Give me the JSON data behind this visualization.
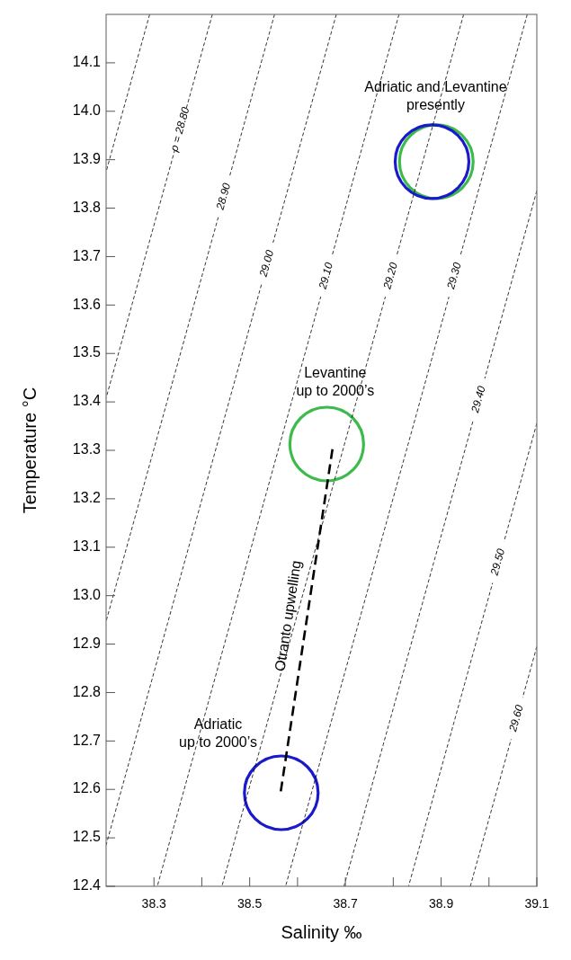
{
  "chart_data": {
    "type": "line",
    "xlabel": "Salinity ‰",
    "ylabel": "Temperature °C",
    "xlim": [
      38.2,
      39.1
    ],
    "ylim": [
      12.4,
      14.2
    ],
    "xticks": [
      38.3,
      {
        "value": 38.4,
        "label": null
      },
      38.5,
      {
        "value": 38.6,
        "label": null
      },
      38.7,
      {
        "value": 38.8,
        "label": null
      },
      38.9,
      {
        "value": 39.0,
        "label": null
      },
      39.1
    ],
    "yticks": [
      12.4,
      12.5,
      12.6,
      12.7,
      12.8,
      12.9,
      {
        "value": 13.0,
        "label": "13.0"
      },
      13.1,
      13.2,
      13.3,
      13.4,
      13.5,
      13.6,
      13.7,
      13.8,
      13.9,
      {
        "value": 14.0,
        "label": "14.0"
      },
      14.1
    ],
    "grid": false,
    "series": [
      {
        "line_style": "dotted",
        "color": "#000000",
        "x": [
          38.291,
          38.2
        ],
        "values": [
          14.2,
          13.875
        ]
      },
      {
        "line_style": "dotted",
        "color": "#000000",
        "name": "ρ = 28.80",
        "x": [
          38.422,
          38.2
        ],
        "values": [
          14.2,
          13.408
        ]
      },
      {
        "line_style": "dotted",
        "color": "#000000",
        "name": "28.90",
        "x": [
          38.552,
          38.2
        ],
        "values": [
          14.2,
          12.947
        ]
      },
      {
        "line_style": "dotted",
        "color": "#000000",
        "name": "29.00",
        "x": [
          38.681,
          38.2
        ],
        "values": [
          14.2,
          12.485
        ]
      },
      {
        "line_style": "dotted",
        "color": "#000000",
        "name": "29.10",
        "x": [
          38.812,
          38.307
        ],
        "values": [
          14.2,
          12.4
        ]
      },
      {
        "line_style": "dotted",
        "color": "#000000",
        "name": "29.20",
        "x": [
          38.947,
          38.442
        ],
        "values": [
          14.2,
          12.4
        ]
      },
      {
        "line_style": "dotted",
        "color": "#000000",
        "name": "29.30",
        "x": [
          39.08,
          38.575
        ],
        "values": [
          14.2,
          12.4
        ]
      },
      {
        "line_style": "dotted",
        "color": "#000000",
        "name": "29.40",
        "x": [
          39.1,
          38.697
        ],
        "values": [
          13.836,
          12.4
        ]
      },
      {
        "line_style": "dotted",
        "color": "#000000",
        "name": "29.50",
        "x": [
          39.1,
          38.832
        ],
        "values": [
          13.356,
          12.4
        ]
      },
      {
        "line_style": "dotted",
        "color": "#000000",
        "name": "29.60",
        "x": [
          39.1,
          38.961
        ],
        "values": [
          12.895,
          12.4
        ]
      },
      {
        "line_style": "dashed",
        "color": "#000000",
        "name": "Otranto upwelling",
        "x": [
          38.565,
          38.674
        ],
        "values": [
          12.596,
          13.309
        ]
      },
      {
        "type": "scatter",
        "marker": "circle",
        "color": "#3cba4c",
        "x": [
          38.661,
          38.89
        ],
        "values": [
          13.313,
          13.896
        ]
      },
      {
        "type": "scatter",
        "marker": "circle",
        "color": "#1a1acc",
        "x": [
          38.566,
          38.881
        ],
        "values": [
          12.593,
          13.896
        ]
      }
    ],
    "annotations": [
      "Adriatic and Levantine\npresently",
      "Levantine\nup to 2000’s",
      "Adriatic\nup to 2000’s"
    ]
  }
}
